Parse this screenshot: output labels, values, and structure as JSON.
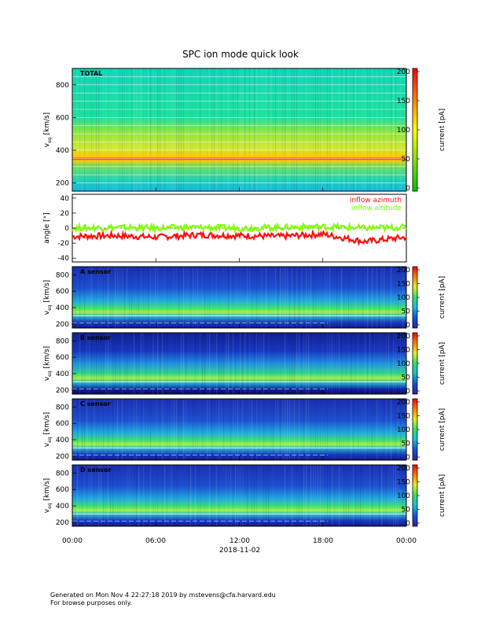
{
  "page": {
    "title": "SPC ion mode quick look",
    "footer_line1": "Generated on Mon Nov  4 22:27:18 2019 by mstevens@cfa.harvard.edu",
    "footer_line2": "For browse purposes only."
  },
  "colors": {
    "inflow_azimuth": "#ff1010",
    "inflow_altitude": "#80ff00",
    "colorbar": [
      "#00c000",
      "#7fe000",
      "#ffff00",
      "#ff8000",
      "#ff0000"
    ]
  },
  "chart_data": [
    {
      "type": "heatmap",
      "panel_label": "TOTAL",
      "ylabel": "v",
      "ylabel_sub": "eq",
      "ylabel_unit": "[km/s]",
      "ylim": [
        150,
        900
      ],
      "yticks": [
        200,
        400,
        600,
        800
      ],
      "xlim": [
        "00:00",
        "00:00"
      ],
      "colorbar_label": "current [pA]",
      "colorbar_range": [
        0,
        200
      ],
      "colorbar_ticks": [
        0,
        50,
        100,
        150,
        200
      ],
      "colormap": "green-yellow-red",
      "bright_band_km_s": [
        320,
        380
      ],
      "dominant_color_above_band": "cyan"
    },
    {
      "type": "line",
      "ylabel": "angle [°]",
      "ylim": [
        -45,
        45
      ],
      "yticks": [
        -40,
        -20,
        0,
        20,
        40
      ],
      "series": [
        {
          "name": "inflow azimuth",
          "x": [
            "00:00",
            "03:00",
            "06:00",
            "09:00",
            "12:00",
            "15:00",
            "18:00",
            "21:00",
            "24:00"
          ],
          "values": [
            -11,
            -10,
            -12,
            -9,
            -10,
            -11,
            -8,
            -18,
            -12
          ]
        },
        {
          "name": "inflow altitude",
          "x": [
            "00:00",
            "03:00",
            "06:00",
            "09:00",
            "12:00",
            "15:00",
            "18:00",
            "21:00",
            "24:00"
          ],
          "values": [
            0,
            1,
            0,
            1,
            0,
            1,
            2,
            0,
            1
          ]
        }
      ]
    },
    {
      "type": "heatmap",
      "panel_label": "A sensor",
      "ylabel": "v",
      "ylabel_sub": "eq",
      "ylabel_unit": "[km/s]",
      "ylim": [
        150,
        900
      ],
      "yticks": [
        200,
        400,
        600,
        800
      ],
      "colorbar_label": "current [pA]",
      "colorbar_range": [
        0,
        200
      ],
      "colorbar_ticks": [
        0,
        50,
        100,
        150,
        200
      ],
      "colormap": "blue-cyan-green-yellow-red"
    },
    {
      "type": "heatmap",
      "panel_label": "B sensor",
      "ylabel": "v",
      "ylabel_sub": "eq",
      "ylabel_unit": "[km/s]",
      "ylim": [
        150,
        900
      ],
      "yticks": [
        200,
        400,
        600,
        800
      ],
      "colorbar_label": "current [pA]",
      "colorbar_range": [
        0,
        200
      ],
      "colorbar_ticks": [
        0,
        50,
        100,
        150,
        200
      ],
      "colormap": "blue-cyan-green-yellow-red"
    },
    {
      "type": "heatmap",
      "panel_label": "C sensor",
      "ylabel": "v",
      "ylabel_sub": "eq",
      "ylabel_unit": "[km/s]",
      "ylim": [
        150,
        900
      ],
      "yticks": [
        200,
        400,
        600,
        800
      ],
      "colorbar_label": "current [pA]",
      "colorbar_range": [
        0,
        200
      ],
      "colorbar_ticks": [
        0,
        50,
        100,
        150,
        200
      ],
      "colormap": "blue-cyan-green-yellow-red"
    },
    {
      "type": "heatmap",
      "panel_label": "D sensor",
      "ylabel": "v",
      "ylabel_sub": "eq",
      "ylabel_unit": "[km/s]",
      "ylim": [
        150,
        900
      ],
      "yticks": [
        200,
        400,
        600,
        800
      ],
      "colorbar_label": "current [pA]",
      "colorbar_range": [
        0,
        200
      ],
      "colorbar_ticks": [
        0,
        50,
        100,
        150,
        200
      ],
      "colormap": "blue-cyan-green-yellow-red"
    }
  ],
  "x_axis": {
    "tick_labels": [
      "00:00",
      "06:00",
      "12:00",
      "18:00",
      "00:00"
    ],
    "date_label": "2018-11-02"
  }
}
